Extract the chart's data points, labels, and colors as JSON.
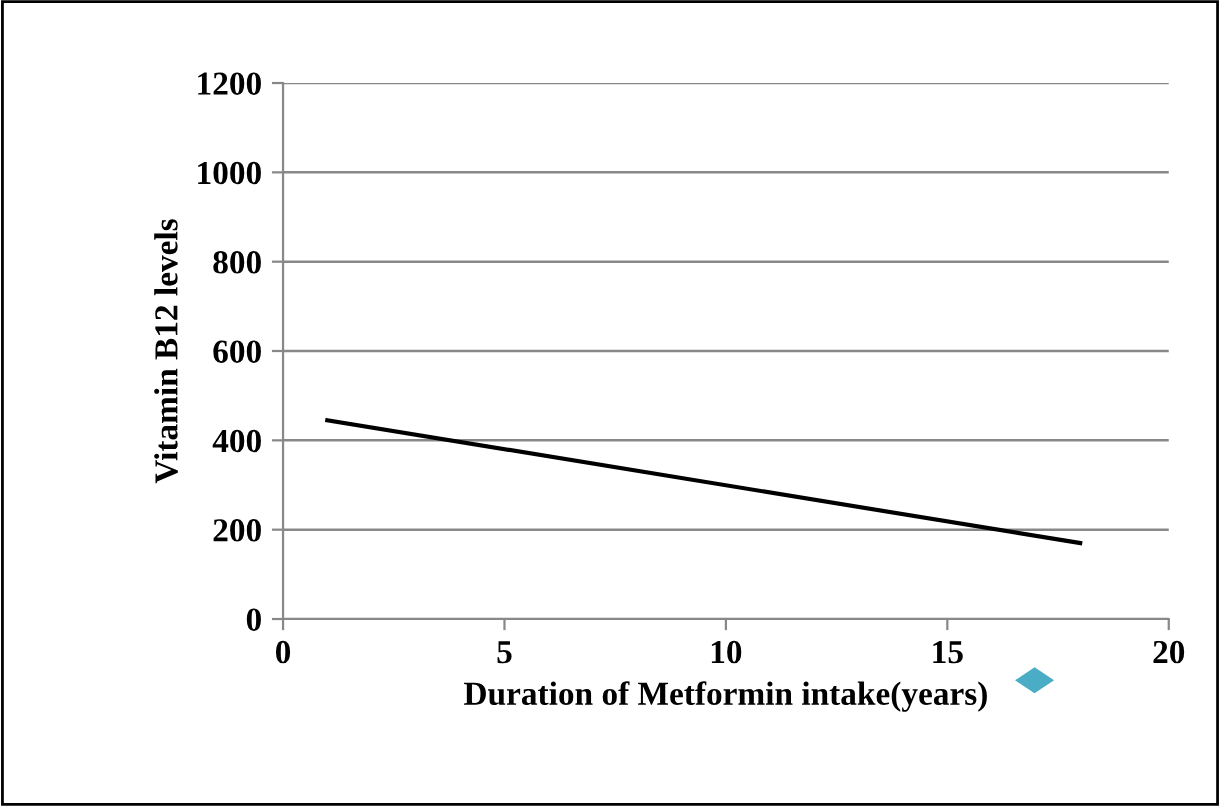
{
  "chart_data": {
    "type": "line",
    "xlabel": "Duration of Metformin intake(years)",
    "ylabel": "Vitamin B12 levels",
    "x": [
      1,
      18
    ],
    "series": [
      {
        "color": "#000000",
        "values": [
          445,
          170
        ]
      }
    ],
    "xlim": [
      0,
      20
    ],
    "xticks": [
      0,
      5,
      10,
      15,
      20
    ],
    "ylim": [
      0,
      1200
    ],
    "yticks": [
      0,
      200,
      400,
      600,
      800,
      1000,
      1200
    ],
    "grid": "y",
    "marker": "none",
    "line_style": "solid"
  }
}
